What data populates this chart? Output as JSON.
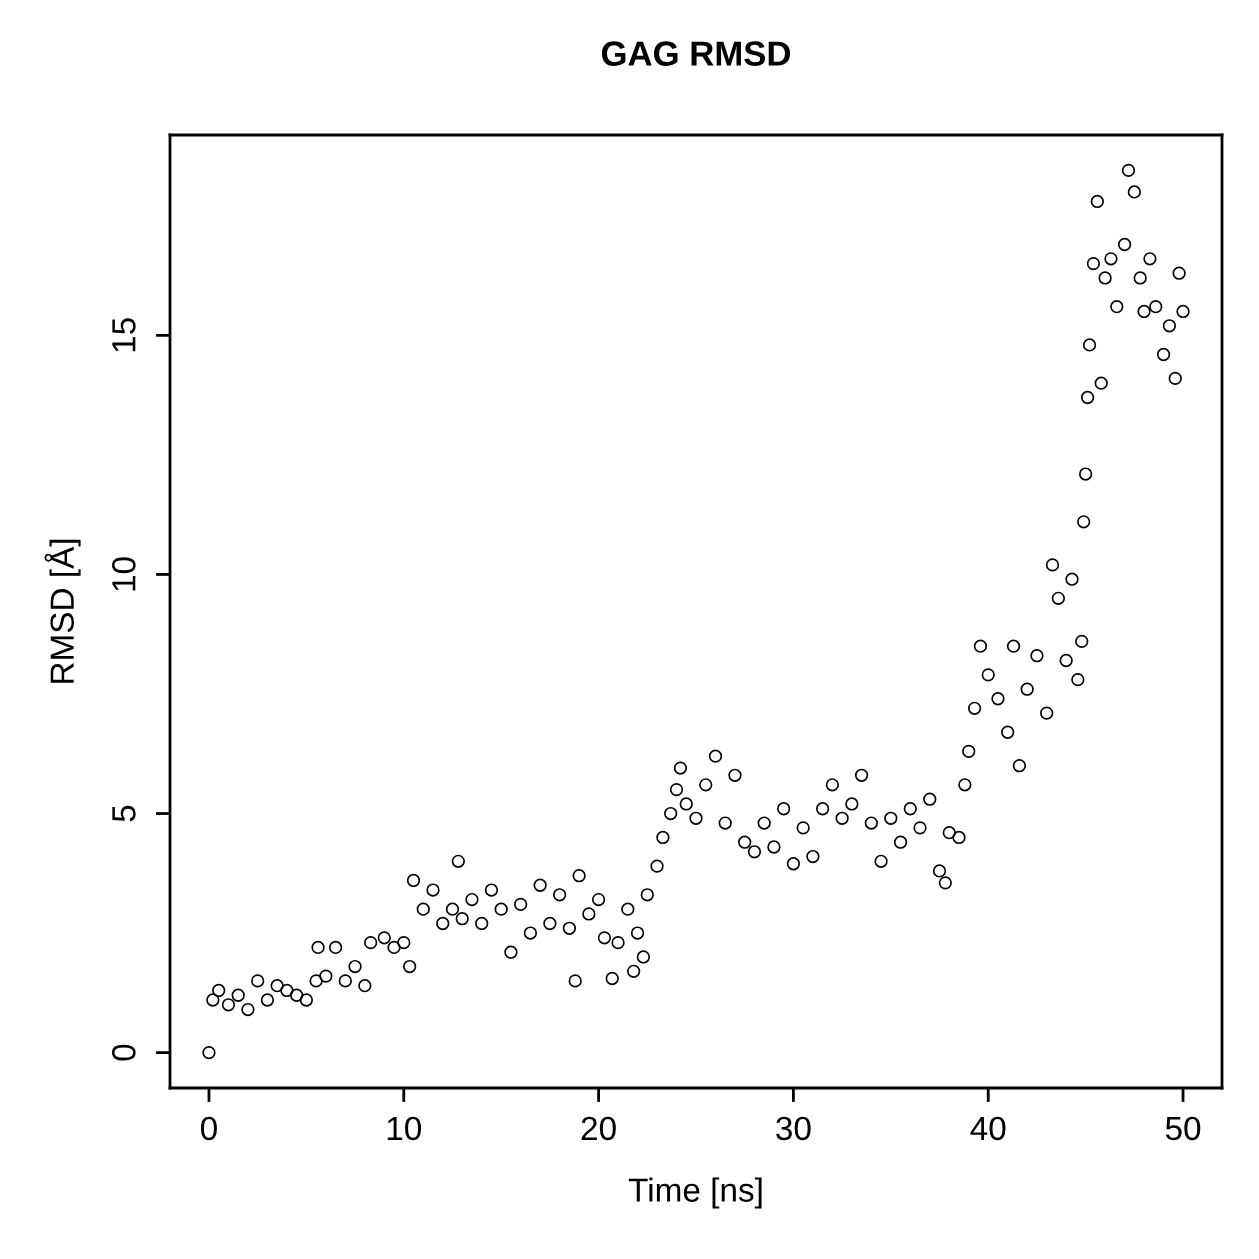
{
  "chart_data": {
    "type": "scatter",
    "title": "GAG RMSD",
    "xlabel": "Time [ns]",
    "ylabel": "RMSD [Å]",
    "x": [
      0,
      0.2,
      0.5,
      1,
      1.5,
      2,
      2.5,
      3,
      3.5,
      4,
      4.5,
      5,
      5.5,
      5.6,
      6,
      6.5,
      7,
      7.5,
      8,
      8.3,
      9,
      9.5,
      10,
      10.3,
      10.5,
      11,
      11.5,
      12,
      12.5,
      12.8,
      13,
      13.5,
      14,
      14.5,
      15,
      15.5,
      16,
      16.5,
      17,
      17.5,
      18,
      18.5,
      18.8,
      19,
      19.5,
      20,
      20.3,
      20.7,
      21,
      21.5,
      21.8,
      22,
      22.3,
      22.5,
      23,
      23.3,
      23.7,
      24,
      24.2,
      24.5,
      25,
      25.5,
      26,
      26.5,
      27,
      27.5,
      28,
      28.5,
      29,
      29.5,
      30,
      30.5,
      31,
      31.5,
      32,
      32.5,
      33,
      33.5,
      34,
      34.5,
      35,
      35.5,
      36,
      36.5,
      37,
      37.5,
      37.8,
      38,
      38.5,
      38.8,
      39,
      39.3,
      39.6,
      40,
      40.5,
      41,
      41.3,
      41.6,
      42,
      42.5,
      43,
      43.3,
      43.6,
      44,
      44.3,
      44.6,
      44.8,
      44.9,
      45,
      45.1,
      45.2,
      45.4,
      45.6,
      45.8,
      46,
      46.3,
      46.6,
      47,
      47.2,
      47.5,
      47.8,
      48,
      48.3,
      48.6,
      49,
      49.3,
      49.6,
      49.8,
      50
    ],
    "values": [
      0,
      1.1,
      1.3,
      1.0,
      1.2,
      0.9,
      1.5,
      1.1,
      1.4,
      1.3,
      1.2,
      1.1,
      1.5,
      2.2,
      1.6,
      2.2,
      1.5,
      1.8,
      1.4,
      2.3,
      2.4,
      2.2,
      2.3,
      1.8,
      3.6,
      3.0,
      3.4,
      2.7,
      3.0,
      4.0,
      2.8,
      3.2,
      2.7,
      3.4,
      3.0,
      2.1,
      3.1,
      2.5,
      3.5,
      2.7,
      3.3,
      2.6,
      1.5,
      3.7,
      2.9,
      3.2,
      2.4,
      1.55,
      2.3,
      3.0,
      1.7,
      2.5,
      2.0,
      3.3,
      3.9,
      4.5,
      5.0,
      5.5,
      5.95,
      5.2,
      4.9,
      5.6,
      6.2,
      4.8,
      5.8,
      4.4,
      4.2,
      4.8,
      4.3,
      5.1,
      3.95,
      4.7,
      4.1,
      5.1,
      5.6,
      4.9,
      5.2,
      5.8,
      4.8,
      4.0,
      4.9,
      4.4,
      5.1,
      4.7,
      5.3,
      3.8,
      3.55,
      4.6,
      4.5,
      5.6,
      6.3,
      7.2,
      8.5,
      7.9,
      7.4,
      6.7,
      8.5,
      6.0,
      7.6,
      8.3,
      7.1,
      10.2,
      9.5,
      8.2,
      9.9,
      7.8,
      8.6,
      11.1,
      12.1,
      13.7,
      14.8,
      16.5,
      17.8,
      14.0,
      16.2,
      16.6,
      15.6,
      16.9,
      18.45,
      18.0,
      16.2,
      15.5,
      16.6,
      15.6,
      14.6,
      15.2,
      14.1,
      16.3,
      15.5
    ],
    "color": "#000000",
    "marker": "circle",
    "xlim": [
      -2,
      52
    ],
    "ylim": [
      -0.74,
      19.19
    ],
    "xticks": [
      0,
      10,
      20,
      30,
      40,
      50
    ],
    "yticks": [
      0,
      5,
      10,
      15
    ]
  }
}
